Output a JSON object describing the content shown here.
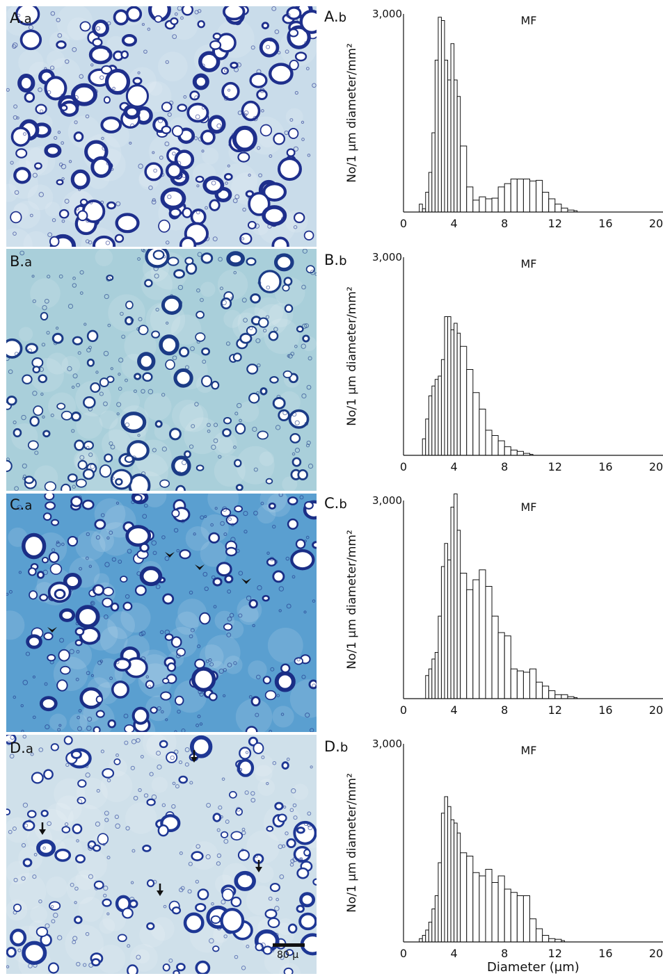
{
  "panels": [
    {
      "id": "A",
      "micro_label": "A.",
      "micro_sub": "a",
      "chart_label": "A.",
      "chart_sub": "b",
      "bg": "#c9dcea",
      "ring": "#1e2f8c",
      "ring_fill": "#ffffff",
      "density": 1
    },
    {
      "id": "B",
      "micro_label": "B.",
      "micro_sub": "a",
      "chart_label": "B.",
      "chart_sub": "b",
      "bg": "#a9cfda",
      "ring": "#1b3b86",
      "ring_fill": "#ffffff",
      "density": 2
    },
    {
      "id": "C",
      "micro_label": "C.",
      "micro_sub": "a",
      "chart_label": "C.",
      "chart_sub": "b",
      "bg": "#5a9fd0",
      "ring": "#1a2e86",
      "ring_fill": "#ffffff",
      "density": 2
    },
    {
      "id": "D",
      "micro_label": "D.",
      "micro_sub": "a",
      "chart_label": "D.",
      "chart_sub": "b",
      "bg": "#cfe0ea",
      "ring": "#1e3794",
      "ring_fill": "#ffffff",
      "density": 2
    }
  ],
  "scale_bar": {
    "label": "80 μ"
  },
  "chart_data": [
    {
      "type": "bar",
      "panel": "A.b",
      "title": "MF",
      "ylabel": "No/1 μm diameter/mm²",
      "xlabel": "",
      "xlim": [
        0,
        20
      ],
      "ylim": [
        0,
        3000
      ],
      "bin_width": 0.25,
      "xticks": [
        0,
        4,
        8,
        12,
        16,
        20
      ],
      "xtick_labels": [
        "0",
        "4",
        "8",
        "12",
        "16",
        "20"
      ],
      "ytick_labels": [
        "3,000"
      ],
      "x": [
        1.25,
        1.5,
        1.75,
        2.0,
        2.25,
        2.5,
        2.75,
        3.0,
        3.25,
        3.5,
        3.75,
        4.0,
        4.25,
        4.5,
        5.0,
        5.5,
        6.0,
        6.5,
        7.0,
        7.5,
        8.0,
        8.5,
        9.0,
        9.5,
        10.0,
        10.5,
        11.0,
        11.5,
        12.0,
        12.5,
        13.0,
        13.5
      ],
      "values": [
        120,
        50,
        300,
        600,
        1200,
        2300,
        2950,
        2900,
        2300,
        2000,
        2550,
        2000,
        1750,
        1000,
        380,
        180,
        230,
        200,
        210,
        380,
        430,
        500,
        500,
        500,
        470,
        480,
        300,
        200,
        120,
        60,
        30,
        20
      ]
    },
    {
      "type": "bar",
      "panel": "B.b",
      "title": "MF",
      "ylabel": "No/1 μm diameter/mm²",
      "xlabel": "",
      "xlim": [
        0,
        20
      ],
      "ylim": [
        0,
        3000
      ],
      "bin_width": 0.25,
      "xticks": [
        0,
        4,
        8,
        12,
        16,
        20
      ],
      "xtick_labels": [
        "0",
        "4",
        "8",
        "12",
        "16",
        "20"
      ],
      "ytick_labels": [
        "3,000"
      ],
      "x": [
        1.5,
        1.75,
        2.0,
        2.25,
        2.5,
        2.75,
        3.0,
        3.25,
        3.5,
        3.75,
        4.0,
        4.25,
        4.5,
        5.0,
        5.5,
        6.0,
        6.5,
        7.0,
        7.5,
        8.0,
        8.5,
        9.0,
        9.5,
        10.0
      ],
      "values": [
        250,
        550,
        900,
        1050,
        1150,
        1200,
        1450,
        2100,
        2100,
        1900,
        2000,
        1850,
        1650,
        1300,
        950,
        700,
        380,
        300,
        220,
        130,
        80,
        60,
        30,
        15
      ]
    },
    {
      "type": "bar",
      "panel": "C.b",
      "title": "MF",
      "ylabel": "No/1 μm diameter/mm²",
      "xlabel": "",
      "xlim": [
        0,
        20
      ],
      "ylim": [
        0,
        3000
      ],
      "bin_width": 0.25,
      "xticks": [
        0,
        4,
        8,
        12,
        16,
        20
      ],
      "xtick_labels": [
        "0",
        "4",
        "8",
        "12",
        "16",
        "20"
      ],
      "ytick_labels": [
        "3,000"
      ],
      "x": [
        1.75,
        2.0,
        2.25,
        2.5,
        2.75,
        3.0,
        3.25,
        3.5,
        3.75,
        4.0,
        4.25,
        4.5,
        5.0,
        5.5,
        6.0,
        6.5,
        7.0,
        7.5,
        8.0,
        8.5,
        9.0,
        9.5,
        10.0,
        10.5,
        11.0,
        11.5,
        12.0,
        12.5,
        13.0,
        13.5
      ],
      "values": [
        350,
        450,
        600,
        700,
        1250,
        2000,
        2350,
        2100,
        2900,
        3100,
        2550,
        1900,
        1650,
        1800,
        1950,
        1700,
        1250,
        1000,
        950,
        450,
        420,
        400,
        450,
        250,
        190,
        120,
        60,
        60,
        30,
        15
      ]
    },
    {
      "type": "bar",
      "panel": "D.b",
      "title": "MF",
      "ylabel": "No/1 μm diameter/mm²",
      "xlabel": "Diameter (μm)",
      "xlim": [
        0,
        20
      ],
      "ylim": [
        0,
        3000
      ],
      "bin_width": 0.25,
      "xticks": [
        0,
        4,
        8,
        12,
        16,
        20
      ],
      "xtick_labels": [
        "0",
        "4",
        "8",
        "12",
        "16",
        "20"
      ],
      "ytick_labels": [
        "3,000"
      ],
      "x": [
        1.25,
        1.5,
        1.75,
        2.0,
        2.25,
        2.5,
        2.75,
        3.0,
        3.25,
        3.5,
        3.75,
        4.0,
        4.25,
        4.5,
        5.0,
        5.5,
        6.0,
        6.5,
        7.0,
        7.5,
        8.0,
        8.5,
        9.0,
        9.5,
        10.0,
        10.5,
        11.0,
        11.5,
        12.0,
        12.5
      ],
      "values": [
        50,
        100,
        180,
        300,
        500,
        700,
        1200,
        1950,
        2200,
        2050,
        1850,
        1800,
        1650,
        1350,
        1300,
        1050,
        1000,
        1100,
        900,
        1000,
        800,
        750,
        700,
        700,
        350,
        200,
        100,
        50,
        40,
        20
      ]
    }
  ]
}
